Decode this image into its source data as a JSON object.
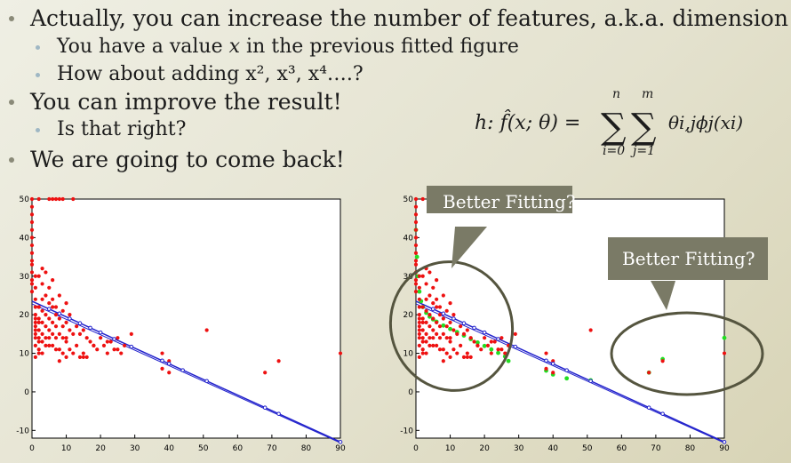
{
  "bullets": [
    {
      "level": 1,
      "text": "Actually, you can increase the number of features, a.k.a. dimension"
    },
    {
      "level": 2,
      "text_pre": "You have a value ",
      "text_var": "x",
      "text_post": " in the previous fitted figure"
    },
    {
      "level": 2,
      "text": "How about adding x², x³, x⁴….?"
    },
    {
      "level": 1,
      "text": "You can improve the result!"
    },
    {
      "level": 2,
      "text": "Is that right?"
    },
    {
      "level": 1,
      "text": "We are going to come back!"
    }
  ],
  "formula": {
    "lhs": "h: f̂(x; θ) =",
    "sum1_top": "n",
    "sum1_bottom": "i=0",
    "sum2_top": "m",
    "sum2_bottom": "j=1",
    "rhs": "θi,jϕj(xi)"
  },
  "callouts": {
    "left": "Better Fitting?",
    "right": "Better Fitting?"
  },
  "colors": {
    "points": "#ee1111",
    "linear_fit": "#2222cc",
    "poly_fit": "#22dd22",
    "callout_bg": "#7a7a66",
    "ellipse": "#55553f"
  },
  "chart_data": [
    {
      "type": "scatter",
      "title": "",
      "xlabel": "",
      "ylabel": "",
      "xlim": [
        0,
        90
      ],
      "ylim": [
        -12,
        50
      ],
      "xticks": [
        0,
        10,
        20,
        30,
        40,
        50,
        60,
        70,
        80,
        90
      ],
      "yticks": [
        -10,
        0,
        10,
        20,
        30,
        40,
        50
      ],
      "xtick_labels": [
        "0",
        "10",
        "20",
        "30",
        "40",
        "50",
        "60",
        "70",
        "80",
        "90"
      ],
      "ytick_labels": [
        "-10",
        "0",
        "10",
        "20",
        "30",
        "40",
        "50"
      ],
      "grid": false,
      "series": [
        {
          "role": "data",
          "x": [
            0,
            0,
            0,
            0,
            0,
            0,
            0,
            0,
            0,
            0,
            1,
            1,
            1,
            1,
            1,
            1,
            1,
            1,
            2,
            2,
            2,
            2,
            2,
            2,
            3,
            3,
            3,
            3,
            3,
            4,
            4,
            4,
            4,
            4,
            5,
            5,
            5,
            5,
            5,
            6,
            6,
            6,
            6,
            7,
            7,
            7,
            7,
            8,
            8,
            8,
            9,
            9,
            9,
            10,
            10,
            10,
            11,
            11,
            12,
            12,
            13,
            13,
            14,
            14,
            15,
            15,
            16,
            16,
            17,
            18,
            19,
            20,
            21,
            22,
            23,
            24,
            25,
            26,
            27,
            29,
            38,
            38,
            40,
            40,
            51,
            68,
            72,
            90,
            0,
            0,
            0,
            0,
            1,
            1,
            1,
            2,
            5,
            6,
            7,
            8,
            9,
            12,
            3,
            4,
            5,
            6,
            2,
            3,
            1,
            2,
            3,
            1,
            2,
            8,
            10,
            15,
            18,
            22,
            25,
            6,
            7,
            8,
            9,
            10,
            11
          ],
          "y": [
            50,
            48,
            46,
            44,
            42,
            40,
            36,
            33,
            28,
            26,
            22,
            20,
            19,
            18,
            17,
            16,
            15,
            14,
            22,
            19,
            18,
            16,
            14,
            13,
            24,
            21,
            18,
            15,
            13,
            25,
            20,
            17,
            14,
            12,
            23,
            19,
            16,
            14,
            12,
            22,
            18,
            15,
            12,
            20,
            17,
            14,
            11,
            19,
            15,
            11,
            17,
            14,
            10,
            18,
            13,
            9,
            16,
            11,
            15,
            10,
            17,
            12,
            15,
            9,
            16,
            10,
            14,
            9,
            13,
            12,
            11,
            14,
            12,
            10,
            13,
            11,
            14,
            10,
            12,
            15,
            10,
            6,
            8,
            5,
            16,
            5,
            8,
            10,
            38,
            34,
            31,
            29,
            30,
            27,
            24,
            50,
            50,
            50,
            50,
            50,
            50,
            50,
            28,
            31,
            27,
            29,
            30,
            32,
            12,
            11,
            10,
            9,
            10,
            8,
            14,
            9,
            12,
            13,
            11,
            24,
            22,
            25,
            21,
            23,
            20
          ]
        },
        {
          "role": "linear-fit",
          "x": [
            0,
            90
          ],
          "y": [
            23.5,
            -13
          ]
        },
        {
          "role": "fit-markers",
          "x": [
            5,
            8,
            11,
            14,
            17,
            20,
            24,
            29,
            38,
            40,
            44,
            51,
            68,
            72,
            90
          ],
          "y": [
            21.5,
            20.3,
            19.0,
            17.8,
            16.6,
            15.4,
            13.7,
            11.7,
            8.1,
            7.3,
            5.6,
            2.8,
            -4.1,
            -5.7,
            -13
          ]
        }
      ]
    },
    {
      "type": "scatter",
      "title": "",
      "xlabel": "",
      "ylabel": "",
      "xlim": [
        0,
        90
      ],
      "ylim": [
        -12,
        50
      ],
      "xticks": [
        0,
        10,
        20,
        30,
        40,
        50,
        60,
        70,
        80,
        90
      ],
      "yticks": [
        -10,
        0,
        10,
        20,
        30,
        40,
        50
      ],
      "xtick_labels": [
        "0",
        "10",
        "20",
        "30",
        "40",
        "50",
        "60",
        "70",
        "80",
        "90"
      ],
      "ytick_labels": [
        "-10",
        "0",
        "10",
        "20",
        "30",
        "40",
        "50"
      ],
      "grid": false,
      "series": [
        {
          "role": "data",
          "x": [
            0,
            0,
            0,
            0,
            0,
            0,
            0,
            0,
            0,
            0,
            1,
            1,
            1,
            1,
            1,
            1,
            1,
            1,
            2,
            2,
            2,
            2,
            2,
            2,
            3,
            3,
            3,
            3,
            3,
            4,
            4,
            4,
            4,
            4,
            5,
            5,
            5,
            5,
            5,
            6,
            6,
            6,
            6,
            7,
            7,
            7,
            7,
            8,
            8,
            8,
            9,
            9,
            9,
            10,
            10,
            10,
            11,
            11,
            12,
            12,
            13,
            13,
            14,
            14,
            15,
            15,
            16,
            16,
            17,
            18,
            19,
            20,
            21,
            22,
            23,
            24,
            25,
            26,
            27,
            29,
            38,
            38,
            40,
            40,
            51,
            68,
            72,
            90,
            0,
            0,
            0,
            0,
            1,
            1,
            1,
            2,
            5,
            6,
            7,
            8,
            9,
            12,
            3,
            4,
            5,
            6,
            2,
            3,
            1,
            2,
            3,
            1,
            2,
            8,
            10,
            15,
            18,
            22,
            25,
            6,
            7,
            8,
            9,
            10,
            11
          ],
          "y": [
            50,
            48,
            46,
            44,
            42,
            40,
            36,
            33,
            28,
            26,
            22,
            20,
            19,
            18,
            17,
            16,
            15,
            14,
            22,
            19,
            18,
            16,
            14,
            13,
            24,
            21,
            18,
            15,
            13,
            25,
            20,
            17,
            14,
            12,
            23,
            19,
            16,
            14,
            12,
            22,
            18,
            15,
            12,
            20,
            17,
            14,
            11,
            19,
            15,
            11,
            17,
            14,
            10,
            18,
            13,
            9,
            16,
            11,
            15,
            10,
            17,
            12,
            15,
            9,
            16,
            10,
            14,
            9,
            13,
            12,
            11,
            14,
            12,
            10,
            13,
            11,
            14,
            10,
            12,
            15,
            10,
            6,
            8,
            5,
            16,
            5,
            8,
            10,
            38,
            34,
            31,
            29,
            30,
            27,
            24,
            50,
            50,
            50,
            50,
            50,
            50,
            50,
            28,
            31,
            27,
            29,
            30,
            32,
            12,
            11,
            10,
            9,
            10,
            8,
            14,
            9,
            12,
            13,
            11,
            24,
            22,
            25,
            21,
            23,
            20
          ]
        },
        {
          "role": "linear-fit",
          "x": [
            0,
            90
          ],
          "y": [
            23.5,
            -13
          ]
        },
        {
          "role": "poly-fit",
          "x": [
            0,
            0.3,
            0.6,
            1,
            1.5,
            2,
            3,
            4,
            5,
            6,
            8,
            10,
            12,
            14,
            16,
            18,
            20,
            22,
            24,
            26,
            27,
            38,
            40,
            44,
            51,
            68,
            72,
            90
          ],
          "y": [
            42,
            35,
            30,
            26,
            23.5,
            22,
            20.5,
            19.5,
            18.8,
            18.2,
            17.2,
            16.3,
            15.5,
            14.6,
            13.7,
            12.8,
            11.9,
            11.0,
            10.1,
            9.2,
            8.0,
            5.5,
            4.5,
            3.5,
            3.0,
            5.0,
            8.5,
            14.0
          ]
        },
        {
          "role": "fit-markers",
          "x": [
            5,
            8,
            11,
            14,
            17,
            20,
            24,
            29,
            38,
            40,
            44,
            51,
            68,
            72,
            90
          ],
          "y": [
            21.5,
            20.3,
            19.0,
            17.8,
            16.6,
            15.4,
            13.7,
            11.7,
            8.1,
            7.3,
            5.6,
            2.8,
            -4.1,
            -5.7,
            -13
          ]
        }
      ]
    }
  ]
}
